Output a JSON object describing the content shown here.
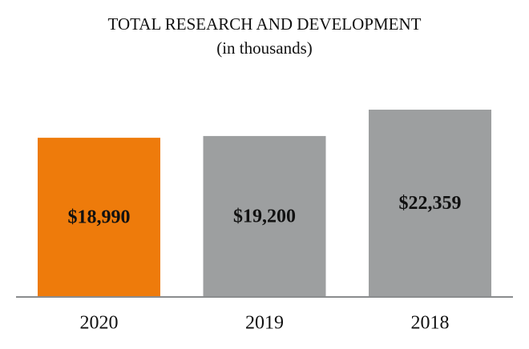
{
  "chart_data": {
    "type": "bar",
    "title": "TOTAL RESEARCH AND DEVELOPMENT",
    "subtitle": "(in thousands)",
    "categories": [
      "2020",
      "2019",
      "2018"
    ],
    "values": [
      18990,
      19200,
      22359
    ],
    "value_labels": [
      "$18,990",
      "$19,200",
      "$22,359"
    ],
    "colors": [
      "#ee7b0b",
      "#9d9fa0",
      "#9d9fa0"
    ]
  }
}
